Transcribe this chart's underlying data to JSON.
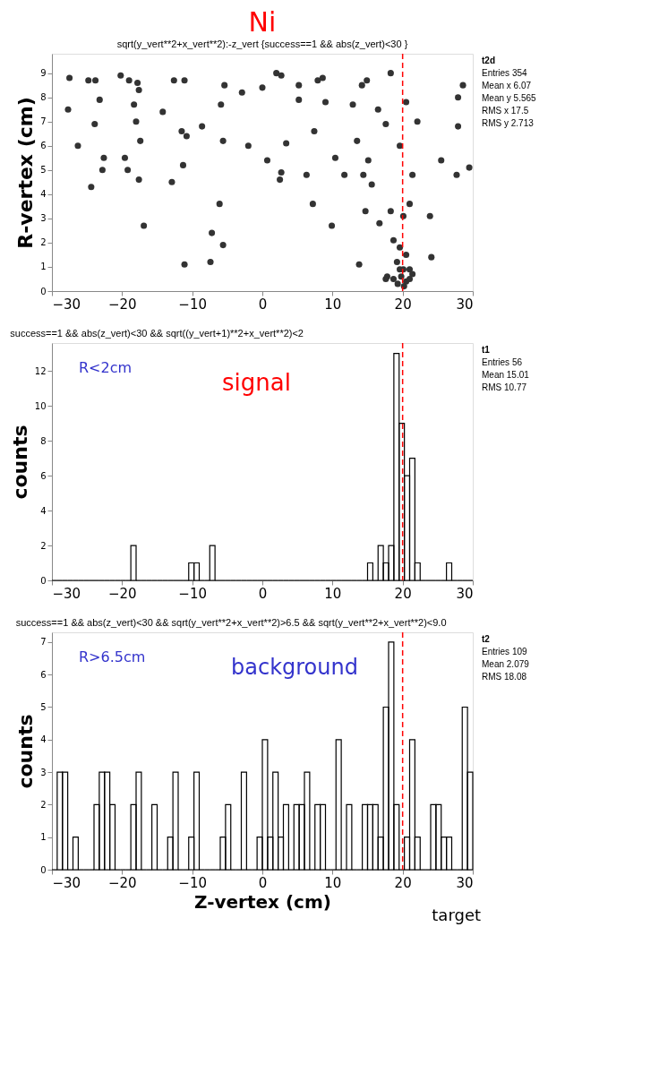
{
  "chart_data": [
    {
      "type": "scatter",
      "title": "Ni",
      "subtitle": "sqrt(y_vert**2+x_vert**2):-z_vert {success==1 && abs(z_vert)<30 }",
      "ylabel": "R-vertex (cm)",
      "marker": "circle",
      "x": [
        -27.5,
        -24.8,
        -23.8,
        -20.2,
        -19.0,
        -17.8,
        -17.6,
        -12.6,
        -11.1,
        -5.4,
        -2.9,
        0,
        2,
        2.7,
        5.2,
        7.9,
        8.6,
        14.2,
        14.9,
        18.3,
        28.6,
        -27.7,
        -23.2,
        -18.3,
        -14.2,
        -5.9,
        5.2,
        9.0,
        12.9,
        16.5,
        20.5,
        27.9,
        -23.9,
        -18.0,
        -11.5,
        -8.6,
        7.4,
        17.6,
        22.1,
        27.9,
        -26.3,
        -17.4,
        -10.8,
        -5.6,
        -2.0,
        3.4,
        13.5,
        19.6,
        -22.6,
        -19.6,
        -11.3,
        0.7,
        10.4,
        15.1,
        25.5,
        29.5,
        -22.8,
        -19.2,
        2.7,
        6.3,
        11.7,
        21.4,
        -24.4,
        -17.6,
        -12.9,
        2.5,
        14.4,
        15.6,
        27.7,
        -6.1,
        7.2,
        14.7,
        18.3,
        21.0,
        -16.9,
        9.9,
        16.7,
        20.1,
        23.9,
        -7.2,
        -5.6,
        18.7,
        19.6,
        20.5,
        24.1,
        -11.1,
        -7.4,
        13.8,
        19.2,
        20.1,
        21.0,
        17.8,
        18.7,
        19.8,
        20.5,
        19.3,
        20.2,
        17.6,
        21.0,
        21.4,
        19.6
      ],
      "values": [
        8.8,
        8.7,
        8.7,
        8.9,
        8.7,
        8.6,
        8.3,
        8.7,
        8.7,
        8.5,
        8.2,
        8.4,
        9.0,
        8.9,
        8.5,
        8.7,
        8.8,
        8.5,
        8.7,
        9.0,
        8.5,
        7.5,
        7.9,
        7.7,
        7.4,
        7.7,
        7.9,
        7.8,
        7.7,
        7.5,
        7.8,
        8.0,
        6.9,
        7.0,
        6.6,
        6.8,
        6.6,
        6.9,
        7.0,
        6.8,
        6.0,
        6.2,
        6.4,
        6.2,
        6.0,
        6.1,
        6.2,
        6.0,
        5.5,
        5.5,
        5.2,
        5.4,
        5.5,
        5.4,
        5.4,
        5.1,
        5.0,
        5.0,
        4.9,
        4.8,
        4.8,
        4.8,
        4.3,
        4.6,
        4.5,
        4.6,
        4.8,
        4.4,
        4.8,
        3.6,
        3.6,
        3.3,
        3.3,
        3.6,
        2.7,
        2.7,
        2.8,
        3.1,
        3.1,
        2.4,
        1.9,
        2.1,
        1.8,
        1.5,
        1.4,
        1.1,
        1.2,
        1.1,
        1.2,
        0.9,
        0.9,
        0.6,
        0.5,
        0.6,
        0.4,
        0.3,
        0.2,
        0.5,
        0.5,
        0.7,
        0.9
      ],
      "color": "#333333",
      "xlim": [
        -30,
        30
      ],
      "xticks": [
        -30,
        -20,
        -10,
        0,
        10,
        20,
        30
      ],
      "ylim": [
        0,
        9.8
      ],
      "yticks": [
        0,
        1,
        2,
        3,
        4,
        5,
        6,
        7,
        8,
        9
      ],
      "ref_lines": [
        {
          "axis": "x",
          "value": 20,
          "color": "#ff0000",
          "line_style": "dashed"
        }
      ],
      "annotations": [
        "t2d",
        "Entries 354",
        "Mean x 6.07",
        "Mean y 5.565",
        "RMS x 17.5",
        "RMS y 2.713"
      ]
    },
    {
      "type": "histogram",
      "title": "success==1 && abs(z_vert)<30 && sqrt((y_vert+1)**2+x_vert**2)<2",
      "ylabel": "counts",
      "color": "#000000",
      "bins": [
        -30,
        -29.25,
        -28.5,
        -27.75,
        -27,
        -26.25,
        -25.5,
        -24.75,
        -24,
        -23.25,
        -22.5,
        -21.75,
        -21,
        -20.25,
        -19.5,
        -18.75,
        -18,
        -17.25,
        -16.5,
        -15.75,
        -15,
        -14.25,
        -13.5,
        -12.75,
        -12,
        -11.25,
        -10.5,
        -9.75,
        -9,
        -8.25,
        -7.5,
        -6.75,
        -6,
        -5.25,
        -4.5,
        -3.75,
        -3,
        -2.25,
        -1.5,
        -0.75,
        0,
        0.75,
        1.5,
        2.25,
        3,
        3.75,
        4.5,
        5.25,
        6,
        6.75,
        7.5,
        8.25,
        9,
        9.75,
        10.5,
        11.25,
        12,
        12.75,
        13.5,
        14.25,
        15,
        15.75,
        16.5,
        17.25,
        18,
        18.75,
        19.5,
        20.25,
        21,
        21.75,
        22.5,
        23.25,
        24,
        24.75,
        25.5,
        26.25,
        27,
        27.75,
        28.5,
        29.25,
        30
      ],
      "values": [
        0,
        0,
        0,
        0,
        0,
        0,
        0,
        0,
        0,
        0,
        0,
        0,
        0,
        0,
        0,
        2,
        0,
        0,
        0,
        0,
        0,
        0,
        0,
        0,
        0,
        0,
        1,
        1,
        0,
        0,
        2,
        0,
        0,
        0,
        0,
        0,
        0,
        0,
        0,
        0,
        0,
        0,
        0,
        0,
        0,
        0,
        0,
        0,
        0,
        0,
        0,
        0,
        0,
        0,
        0,
        0,
        0,
        0,
        0,
        0,
        1,
        0,
        2,
        1,
        2,
        13,
        9,
        6,
        7,
        1,
        0,
        0,
        0,
        0,
        0,
        1,
        0,
        0,
        0,
        0
      ],
      "xlim": [
        -30,
        30
      ],
      "xticks": [
        -30,
        -20,
        -10,
        0,
        10,
        20,
        30
      ],
      "ylim": [
        0,
        13.6
      ],
      "yticks": [
        0,
        2,
        4,
        6,
        8,
        10,
        12
      ],
      "ref_lines": [
        {
          "axis": "x",
          "value": 20,
          "color": "#ff0000",
          "line_style": "dashed"
        }
      ],
      "annotations": [
        "R<2cm",
        "signal",
        "t1",
        "Entries 56",
        "Mean 15.01",
        "RMS 10.77"
      ]
    },
    {
      "type": "histogram",
      "title": "success==1 && abs(z_vert)<30 && sqrt(y_vert**2+x_vert**2)>6.5 && sqrt(y_vert**2+x_vert**2)<9.0",
      "xlabel": "Z-vertex (cm)",
      "ylabel": "counts",
      "color": "#000000",
      "bins": [
        -30,
        -29.25,
        -28.5,
        -27.75,
        -27,
        -26.25,
        -25.5,
        -24.75,
        -24,
        -23.25,
        -22.5,
        -21.75,
        -21,
        -20.25,
        -19.5,
        -18.75,
        -18,
        -17.25,
        -16.5,
        -15.75,
        -15,
        -14.25,
        -13.5,
        -12.75,
        -12,
        -11.25,
        -10.5,
        -9.75,
        -9,
        -8.25,
        -7.5,
        -6.75,
        -6,
        -5.25,
        -4.5,
        -3.75,
        -3,
        -2.25,
        -1.5,
        -0.75,
        0,
        0.75,
        1.5,
        2.25,
        3,
        3.75,
        4.5,
        5.25,
        6,
        6.75,
        7.5,
        8.25,
        9,
        9.75,
        10.5,
        11.25,
        12,
        12.75,
        13.5,
        14.25,
        15,
        15.75,
        16.5,
        17.25,
        18,
        18.75,
        19.5,
        20.25,
        21,
        21.75,
        22.5,
        23.25,
        24,
        24.75,
        25.5,
        26.25,
        27,
        27.75,
        28.5,
        29.25,
        30
      ],
      "values": [
        0,
        3,
        3,
        0,
        1,
        0,
        0,
        0,
        2,
        3,
        3,
        2,
        0,
        0,
        0,
        2,
        3,
        0,
        0,
        2,
        0,
        0,
        1,
        3,
        0,
        0,
        1,
        3,
        0,
        0,
        0,
        0,
        1,
        2,
        0,
        0,
        3,
        0,
        0,
        1,
        4,
        1,
        3,
        1,
        2,
        0,
        2,
        2,
        3,
        0,
        2,
        2,
        0,
        0,
        4,
        0,
        2,
        0,
        0,
        2,
        2,
        2,
        1,
        5,
        7,
        2,
        0,
        1,
        4,
        1,
        0,
        0,
        2,
        2,
        1,
        1,
        0,
        0,
        5,
        3
      ],
      "xlim": [
        -30,
        30
      ],
      "xticks": [
        -30,
        -20,
        -10,
        0,
        10,
        20,
        30
      ],
      "ylim": [
        0,
        7.3
      ],
      "yticks": [
        0,
        1,
        2,
        3,
        4,
        5,
        6,
        7
      ],
      "ref_lines": [
        {
          "axis": "x",
          "value": 20,
          "color": "#ff0000",
          "line_style": "dashed"
        }
      ],
      "annotations": [
        "R>6.5cm",
        "background",
        "t2",
        "Entries 109",
        "Mean 2.079",
        "RMS 18.08",
        {
          "text": "target",
          "x": 20,
          "y": 0
        }
      ]
    }
  ]
}
